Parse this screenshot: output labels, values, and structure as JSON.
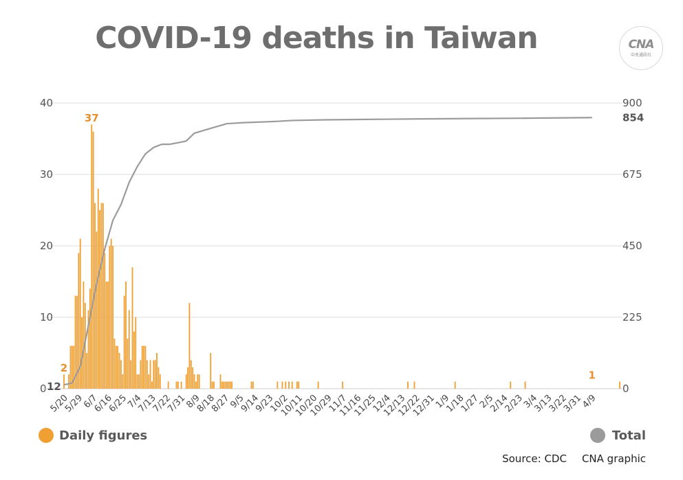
{
  "title": "COVID-19 deaths in Taiwan",
  "logo": {
    "mark": "CNA",
    "sub": "中央通訊社"
  },
  "legend": {
    "daily": "Daily figures",
    "total": "Total"
  },
  "source": {
    "left": "Source: CDC",
    "right": "CNA graphic"
  },
  "colors": {
    "daily": "#f0a033",
    "total": "#9b9b9b",
    "label": "#e8902e",
    "grid": "#dcdcdc"
  },
  "chart_data": {
    "type": "bar+line",
    "left_axis": {
      "ticks": [
        "0",
        "10",
        "20",
        "30",
        "40"
      ],
      "min": 0,
      "max": 40
    },
    "right_axis": {
      "ticks": [
        "0",
        "225",
        "450",
        "675",
        "900"
      ],
      "min": 0,
      "max": 900
    },
    "x_ticks": [
      "5/20",
      "5/29",
      "6/7",
      "6/16",
      "6/25",
      "7/4",
      "7/13",
      "7/22",
      "7/31",
      "8/9",
      "8/18",
      "8/27",
      "9/5",
      "9/14",
      "9/23",
      "10/2",
      "10/11",
      "10/20",
      "10/29",
      "11/7",
      "11/16",
      "11/25",
      "12/4",
      "12/13",
      "12/22",
      "12/31",
      "1/9",
      "1/18",
      "1/27",
      "2/5",
      "2/14",
      "2/23",
      "3/4",
      "3/13",
      "3/22",
      "3/31",
      "4/9"
    ],
    "start_date": "5/20",
    "annotations": [
      {
        "text": "2",
        "day": 0,
        "value": 2,
        "axis": "left"
      },
      {
        "text": "37",
        "day": 17,
        "value": 37,
        "axis": "left"
      },
      {
        "text": "12",
        "day": 0,
        "value": 12,
        "axis": "right"
      },
      {
        "text": "854",
        "day": 324,
        "value": 854,
        "axis": "right"
      },
      {
        "text": "1",
        "day": 324,
        "value": 1,
        "axis": "left"
      }
    ],
    "series": [
      {
        "name": "Daily figures",
        "type": "bar",
        "axis": "left",
        "values": [
          2,
          0,
          0,
          2,
          6,
          6,
          6,
          13,
          13,
          19,
          21,
          10,
          15,
          12,
          5,
          11,
          14,
          37,
          36,
          26,
          22,
          28,
          25,
          26,
          26,
          19,
          15,
          15,
          20,
          21,
          20,
          7,
          6,
          6,
          5,
          4,
          2,
          13,
          15,
          7,
          11,
          4,
          17,
          8,
          10,
          2,
          2,
          4,
          6,
          6,
          6,
          4,
          2,
          4,
          1,
          4,
          4,
          5,
          3,
          2,
          0,
          0,
          0,
          0,
          1,
          0,
          0,
          0,
          0,
          1,
          1,
          0,
          1,
          0,
          0,
          2,
          3,
          12,
          4,
          3,
          2,
          1,
          2,
          2,
          0,
          0,
          0,
          0,
          0,
          0,
          5,
          1,
          1,
          0,
          0,
          0,
          2,
          1,
          1,
          1,
          1,
          1,
          1,
          1,
          0,
          0,
          0,
          0,
          0,
          0,
          0,
          0,
          0,
          0,
          0,
          1,
          1,
          0,
          0,
          0,
          0,
          0,
          0,
          0,
          0,
          0,
          0,
          0,
          0,
          0,
          0,
          1,
          0,
          0,
          1,
          0,
          1,
          0,
          1,
          0,
          1,
          0,
          0,
          1,
          1,
          0,
          0,
          0,
          0,
          0,
          0,
          0,
          0,
          0,
          0,
          0,
          1,
          0,
          0,
          0,
          0,
          0,
          0,
          0,
          0,
          0,
          0,
          0,
          0,
          0,
          0,
          1,
          0,
          0,
          0,
          0,
          0,
          0,
          0,
          0,
          0,
          0,
          0,
          0,
          0,
          0,
          0,
          0,
          0,
          0,
          0,
          0,
          0,
          0,
          0,
          0,
          0,
          0,
          0,
          0,
          0,
          0,
          0,
          0,
          0,
          0,
          0,
          0,
          0,
          0,
          0,
          1,
          0,
          0,
          0,
          1,
          0,
          0,
          0,
          0,
          0,
          0,
          0,
          0,
          0,
          0,
          0,
          0,
          0,
          0,
          0,
          0,
          0,
          0,
          0,
          0,
          0,
          0,
          0,
          0,
          1,
          0,
          0,
          0,
          0,
          0,
          0,
          0,
          0,
          0,
          0,
          0,
          0,
          0,
          0,
          0,
          0,
          0,
          0,
          0,
          0,
          0,
          0,
          0,
          0,
          0,
          0,
          0,
          0,
          0,
          0,
          0,
          0,
          0,
          1,
          0,
          0,
          0,
          0,
          0,
          0,
          0,
          0,
          1,
          0,
          0,
          0,
          0,
          0,
          0,
          0,
          0,
          0,
          0,
          0,
          0,
          0,
          0,
          0,
          0,
          0,
          0,
          0,
          0,
          0,
          0,
          0,
          0,
          0,
          0,
          0,
          0,
          0,
          0,
          0,
          0,
          0,
          0,
          0,
          0,
          0,
          0,
          0,
          0,
          0,
          0,
          0,
          0,
          0,
          0,
          0,
          0,
          0,
          0,
          0,
          0,
          0,
          0,
          0,
          0,
          0,
          1
        ]
      },
      {
        "name": "Total",
        "type": "line",
        "axis": "right",
        "points": [
          [
            0,
            12
          ],
          [
            5,
            18
          ],
          [
            10,
            70
          ],
          [
            15,
            200
          ],
          [
            20,
            330
          ],
          [
            25,
            440
          ],
          [
            30,
            530
          ],
          [
            35,
            580
          ],
          [
            40,
            650
          ],
          [
            45,
            700
          ],
          [
            50,
            740
          ],
          [
            55,
            760
          ],
          [
            60,
            770
          ],
          [
            65,
            770
          ],
          [
            70,
            775
          ],
          [
            75,
            780
          ],
          [
            80,
            805
          ],
          [
            90,
            820
          ],
          [
            100,
            835
          ],
          [
            110,
            838
          ],
          [
            120,
            840
          ],
          [
            130,
            842
          ],
          [
            140,
            845
          ],
          [
            160,
            847
          ],
          [
            180,
            848
          ],
          [
            200,
            849
          ],
          [
            220,
            850
          ],
          [
            250,
            851
          ],
          [
            280,
            852
          ],
          [
            300,
            853
          ],
          [
            324,
            854
          ]
        ]
      }
    ]
  }
}
